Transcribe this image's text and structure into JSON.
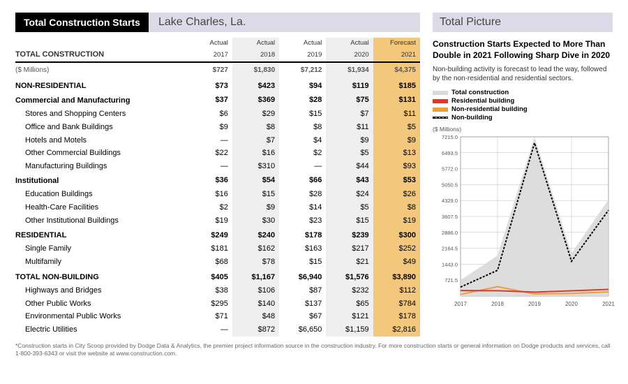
{
  "header": {
    "title_dark": "Total Construction Starts",
    "title_light": "Lake Charles, La."
  },
  "table": {
    "main_label": "TOTAL CONSTRUCTION",
    "cols": [
      {
        "l1": "Actual",
        "l2": "2017"
      },
      {
        "l1": "Actual",
        "l2": "2018"
      },
      {
        "l1": "Actual",
        "l2": "2019"
      },
      {
        "l1": "Actual",
        "l2": "2020"
      },
      {
        "l1": "Forecast",
        "l2": "2021"
      }
    ],
    "unit": "($ Millions)",
    "total": [
      "$727",
      "$1,830",
      "$7,212",
      "$1,934",
      "$4,375"
    ],
    "nonres": {
      "label": "NON-RESIDENTIAL",
      "v": [
        "$73",
        "$423",
        "$94",
        "$119",
        "$185"
      ]
    },
    "comm": {
      "label": "Commercial and Manufacturing",
      "v": [
        "$37",
        "$369",
        "$28",
        "$75",
        "$131"
      ]
    },
    "comm_items": [
      {
        "label": "Stores and Shopping Centers",
        "v": [
          "$6",
          "$29",
          "$15",
          "$7",
          "$11"
        ]
      },
      {
        "label": "Office and Bank Buildings",
        "v": [
          "$9",
          "$8",
          "$8",
          "$11",
          "$5"
        ]
      },
      {
        "label": "Hotels and Motels",
        "v": [
          "—",
          "$7",
          "$4",
          "$9",
          "$9"
        ]
      },
      {
        "label": "Other Commercial Buildings",
        "v": [
          "$22",
          "$16",
          "$2",
          "$5",
          "$13"
        ]
      },
      {
        "label": "Manufacturing Buildings",
        "v": [
          "—",
          "$310",
          "—",
          "$44",
          "$93"
        ]
      }
    ],
    "inst": {
      "label": "Institutional",
      "v": [
        "$36",
        "$54",
        "$66",
        "$43",
        "$53"
      ]
    },
    "inst_items": [
      {
        "label": "Education Buildings",
        "v": [
          "$16",
          "$15",
          "$28",
          "$24",
          "$26"
        ]
      },
      {
        "label": "Health-Care Facilities",
        "v": [
          "$2",
          "$9",
          "$14",
          "$5",
          "$8"
        ]
      },
      {
        "label": "Other Institutional Buildings",
        "v": [
          "$19",
          "$30",
          "$23",
          "$15",
          "$19"
        ]
      }
    ],
    "res": {
      "label": "RESIDENTIAL",
      "v": [
        "$249",
        "$240",
        "$178",
        "$239",
        "$300"
      ]
    },
    "res_items": [
      {
        "label": "Single Family",
        "v": [
          "$181",
          "$162",
          "$163",
          "$217",
          "$252"
        ]
      },
      {
        "label": "Multifamily",
        "v": [
          "$68",
          "$78",
          "$15",
          "$21",
          "$49"
        ]
      }
    ],
    "nonb": {
      "label": "TOTAL NON-BUILDING",
      "v": [
        "$405",
        "$1,167",
        "$6,940",
        "$1,576",
        "$3,890"
      ]
    },
    "nonb_items": [
      {
        "label": "Highways and Bridges",
        "v": [
          "$38",
          "$106",
          "$87",
          "$232",
          "$112"
        ]
      },
      {
        "label": "Other Public Works",
        "v": [
          "$295",
          "$140",
          "$137",
          "$65",
          "$784"
        ]
      },
      {
        "label": "Environmental Public Works",
        "v": [
          "$71",
          "$48",
          "$67",
          "$121",
          "$178"
        ]
      },
      {
        "label": "Electric Utilities",
        "v": [
          "—",
          "$872",
          "$6,650",
          "$1,159",
          "$2,816"
        ]
      }
    ]
  },
  "right": {
    "title": "Total Picture",
    "subhead": "Construction Starts Expected to More Than Double in 2021 Following Sharp Dive in 2020",
    "desc": "Non-building activity is forecast to lead the way, followed by the non-residential and residential sectors.",
    "legend": [
      {
        "label": "Total construction",
        "color": "#d9d9d9"
      },
      {
        "label": "Residential building",
        "color": "#d93a2b"
      },
      {
        "label": "Non-residential building",
        "color": "#e6a13a"
      },
      {
        "label": "Non-building",
        "color": "#000000",
        "dashed": true
      }
    ],
    "chart": {
      "unit": "($ Millions)",
      "years": [
        "2017",
        "2018",
        "2019",
        "2020",
        "2021"
      ],
      "ymax": 7215,
      "yticks": [
        "7215.0",
        "6493.5",
        "5772.0",
        "5050.5",
        "4329.0",
        "3607.5",
        "2886.0",
        "2164.5",
        "1443.0",
        "721.5"
      ],
      "series": {
        "total": [
          727,
          1830,
          7212,
          1934,
          4375
        ],
        "res": [
          249,
          240,
          178,
          239,
          300
        ],
        "nonres": [
          73,
          423,
          94,
          119,
          185
        ],
        "nonb": [
          405,
          1167,
          6940,
          1576,
          3890
        ]
      },
      "colors": {
        "total": "#d9d9d9",
        "res": "#d93a2b",
        "nonres": "#e6a13a",
        "nonb": "#000000"
      },
      "grid_color": "#bdbdbd",
      "axis_color": "#888",
      "bg": "#ffffff"
    }
  },
  "footnote": "*Construction starts in City Scoop provided by Dodge Data & Analytics, the premier project information source in the construction industry. For more construction starts or general information on Dodge products and services, call 1-800-393-6343 or visit the website at www.construction.com."
}
